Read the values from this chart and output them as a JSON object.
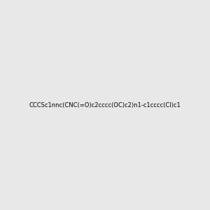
{
  "smiles": "CCCSc1nnc(CNC(=O)c2cccc(OC)c2)n1-c1cccc(Cl)c1",
  "image_size": 300,
  "background_color": "#e8e8e8",
  "atom_colors": {
    "N": "#0000ff",
    "S": "#cccc00",
    "O": "#ff0000",
    "Cl": "#00cc00"
  },
  "title": ""
}
